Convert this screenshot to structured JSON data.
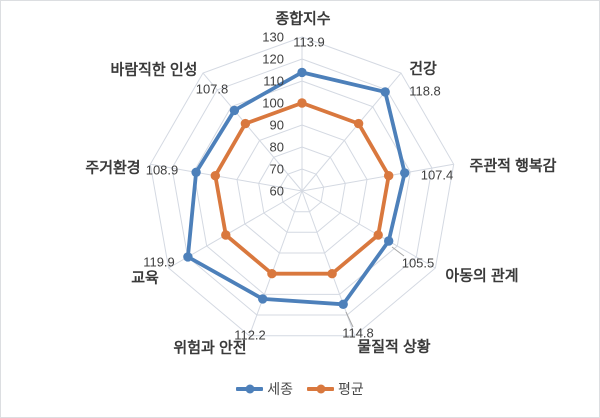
{
  "chart_data": {
    "type": "radar",
    "categories": [
      "종합지수",
      "건강",
      "주관적 행복감",
      "아동의 관계",
      "물질적 상황",
      "위험과 안전",
      "교육",
      "주거환경",
      "바람직한 인성"
    ],
    "series": [
      {
        "name": "세종",
        "color": "#4d80ba",
        "values": [
          113.9,
          118.8,
          107.4,
          105.5,
          114.8,
          112.2,
          119.9,
          108.9,
          107.8
        ],
        "data_labels": [
          "113.9",
          "118.8",
          "107.4",
          "105.5",
          "114.8",
          "112.2",
          "119.9",
          "108.9",
          "107.8"
        ]
      },
      {
        "name": "평균",
        "color": "#d9783e",
        "values": [
          100,
          100,
          100,
          100,
          100,
          100,
          100,
          100,
          100
        ],
        "data_labels": []
      }
    ],
    "radial_axis": {
      "min": 60,
      "max": 130,
      "step": 10,
      "tick_labels": [
        "60",
        "70",
        "80",
        "90",
        "100",
        "110",
        "120",
        "130"
      ]
    },
    "grid": true,
    "legend_position": "bottom",
    "colors": {
      "grid": "#d4d9e2",
      "tick_label": "#404040",
      "data_label": "#404040",
      "category_label": "#3a3a3a",
      "leader_line": "#a8a8a8"
    }
  },
  "legend": {
    "items": [
      {
        "label": "세종",
        "color": "#4d80ba"
      },
      {
        "label": "평균",
        "color": "#d9783e"
      }
    ]
  }
}
